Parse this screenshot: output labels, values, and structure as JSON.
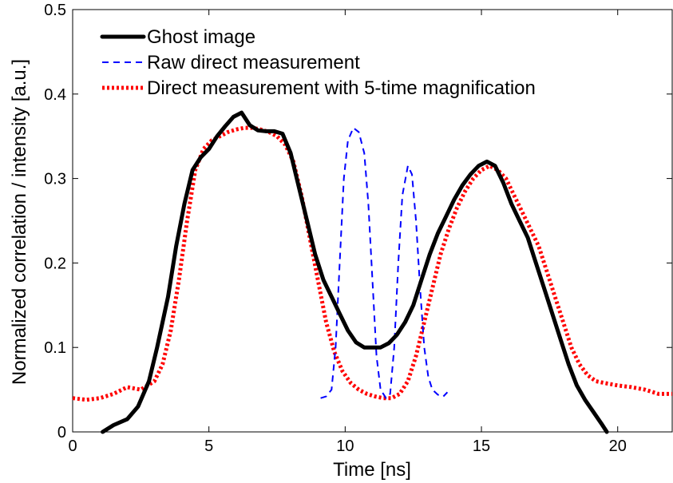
{
  "chart_data": {
    "type": "line",
    "title": "",
    "xlabel": "Time [ns]",
    "ylabel": "Normalized correlation / intensity [a.u.]",
    "xlim": [
      0,
      22
    ],
    "ylim": [
      0,
      0.5
    ],
    "x_ticks": [
      0,
      5,
      10,
      15,
      20
    ],
    "x_tick_labels": [
      "0",
      "5",
      "10",
      "15",
      "20"
    ],
    "y_ticks": [
      0,
      0.1,
      0.2,
      0.3,
      0.4,
      0.5
    ],
    "y_tick_labels": [
      "0",
      "0.1",
      "0.2",
      "0.3",
      "0.4",
      "0.5"
    ],
    "grid": false,
    "legend_position": "top-left",
    "series": [
      {
        "name": "Ghost image",
        "color": "#000000",
        "style": "solid",
        "x": [
          1.1,
          1.5,
          2.0,
          2.4,
          2.8,
          3.1,
          3.5,
          3.8,
          4.1,
          4.4,
          4.7,
          5.0,
          5.3,
          5.6,
          5.9,
          6.2,
          6.5,
          6.8,
          7.1,
          7.4,
          7.7,
          8.0,
          8.3,
          8.6,
          8.9,
          9.2,
          9.5,
          9.8,
          10.1,
          10.4,
          10.7,
          11.0,
          11.3,
          11.6,
          11.9,
          12.2,
          12.5,
          12.8,
          13.1,
          13.4,
          13.7,
          14.0,
          14.3,
          14.6,
          14.9,
          15.2,
          15.5,
          15.8,
          16.1,
          16.4,
          16.7,
          17.0,
          17.3,
          17.6,
          17.9,
          18.2,
          18.5,
          18.8,
          19.1,
          19.4,
          19.6
        ],
        "values": [
          0.0,
          0.008,
          0.015,
          0.03,
          0.06,
          0.1,
          0.16,
          0.22,
          0.27,
          0.31,
          0.325,
          0.335,
          0.35,
          0.362,
          0.373,
          0.378,
          0.363,
          0.357,
          0.356,
          0.356,
          0.353,
          0.33,
          0.29,
          0.25,
          0.21,
          0.18,
          0.16,
          0.14,
          0.12,
          0.106,
          0.1,
          0.1,
          0.1,
          0.105,
          0.115,
          0.13,
          0.15,
          0.18,
          0.21,
          0.235,
          0.255,
          0.275,
          0.292,
          0.305,
          0.315,
          0.32,
          0.315,
          0.295,
          0.27,
          0.25,
          0.23,
          0.2,
          0.17,
          0.14,
          0.11,
          0.08,
          0.055,
          0.038,
          0.024,
          0.01,
          0.0
        ]
      },
      {
        "name": "Raw direct measurement",
        "color": "#0000ff",
        "style": "dashed",
        "x": [
          9.1,
          9.3,
          9.5,
          9.65,
          9.8,
          9.95,
          10.1,
          10.3,
          10.5,
          10.7,
          10.85,
          11.0,
          11.15,
          11.3,
          11.5,
          11.65,
          11.8,
          11.95,
          12.1,
          12.3,
          12.45,
          12.6,
          12.75,
          12.9,
          13.05,
          13.2,
          13.4,
          13.6,
          13.75
        ],
        "values": [
          0.04,
          0.042,
          0.05,
          0.1,
          0.2,
          0.3,
          0.345,
          0.36,
          0.355,
          0.33,
          0.27,
          0.18,
          0.09,
          0.05,
          0.04,
          0.045,
          0.1,
          0.2,
          0.28,
          0.315,
          0.305,
          0.25,
          0.17,
          0.1,
          0.065,
          0.05,
          0.044,
          0.042,
          0.047
        ]
      },
      {
        "name": "Direct measurement with 5-time magnification",
        "color": "#ff0000",
        "style": "dotted",
        "x": [
          0.0,
          0.5,
          1.0,
          1.5,
          2.0,
          2.5,
          3.0,
          3.3,
          3.6,
          3.9,
          4.2,
          4.5,
          4.8,
          5.1,
          5.4,
          5.7,
          6.0,
          6.3,
          6.6,
          6.9,
          7.2,
          7.5,
          7.8,
          8.1,
          8.4,
          8.7,
          9.0,
          9.3,
          9.6,
          9.9,
          10.2,
          10.5,
          10.8,
          11.1,
          11.4,
          11.7,
          12.0,
          12.3,
          12.6,
          12.9,
          13.2,
          13.5,
          13.8,
          14.1,
          14.4,
          14.7,
          15.0,
          15.3,
          15.6,
          15.9,
          16.2,
          16.5,
          16.8,
          17.1,
          17.4,
          17.7,
          18.0,
          18.3,
          18.6,
          18.9,
          19.2,
          19.5,
          20.0,
          20.5,
          21.0,
          21.5,
          22.0
        ],
        "values": [
          0.04,
          0.038,
          0.04,
          0.045,
          0.053,
          0.05,
          0.06,
          0.08,
          0.12,
          0.18,
          0.25,
          0.31,
          0.335,
          0.345,
          0.35,
          0.355,
          0.358,
          0.36,
          0.36,
          0.358,
          0.355,
          0.35,
          0.34,
          0.32,
          0.28,
          0.23,
          0.18,
          0.13,
          0.095,
          0.072,
          0.058,
          0.05,
          0.045,
          0.042,
          0.04,
          0.04,
          0.045,
          0.06,
          0.09,
          0.13,
          0.17,
          0.21,
          0.24,
          0.265,
          0.285,
          0.3,
          0.31,
          0.315,
          0.31,
          0.3,
          0.28,
          0.26,
          0.24,
          0.22,
          0.19,
          0.16,
          0.13,
          0.1,
          0.08,
          0.067,
          0.06,
          0.058,
          0.055,
          0.053,
          0.05,
          0.045,
          0.045
        ]
      }
    ]
  }
}
